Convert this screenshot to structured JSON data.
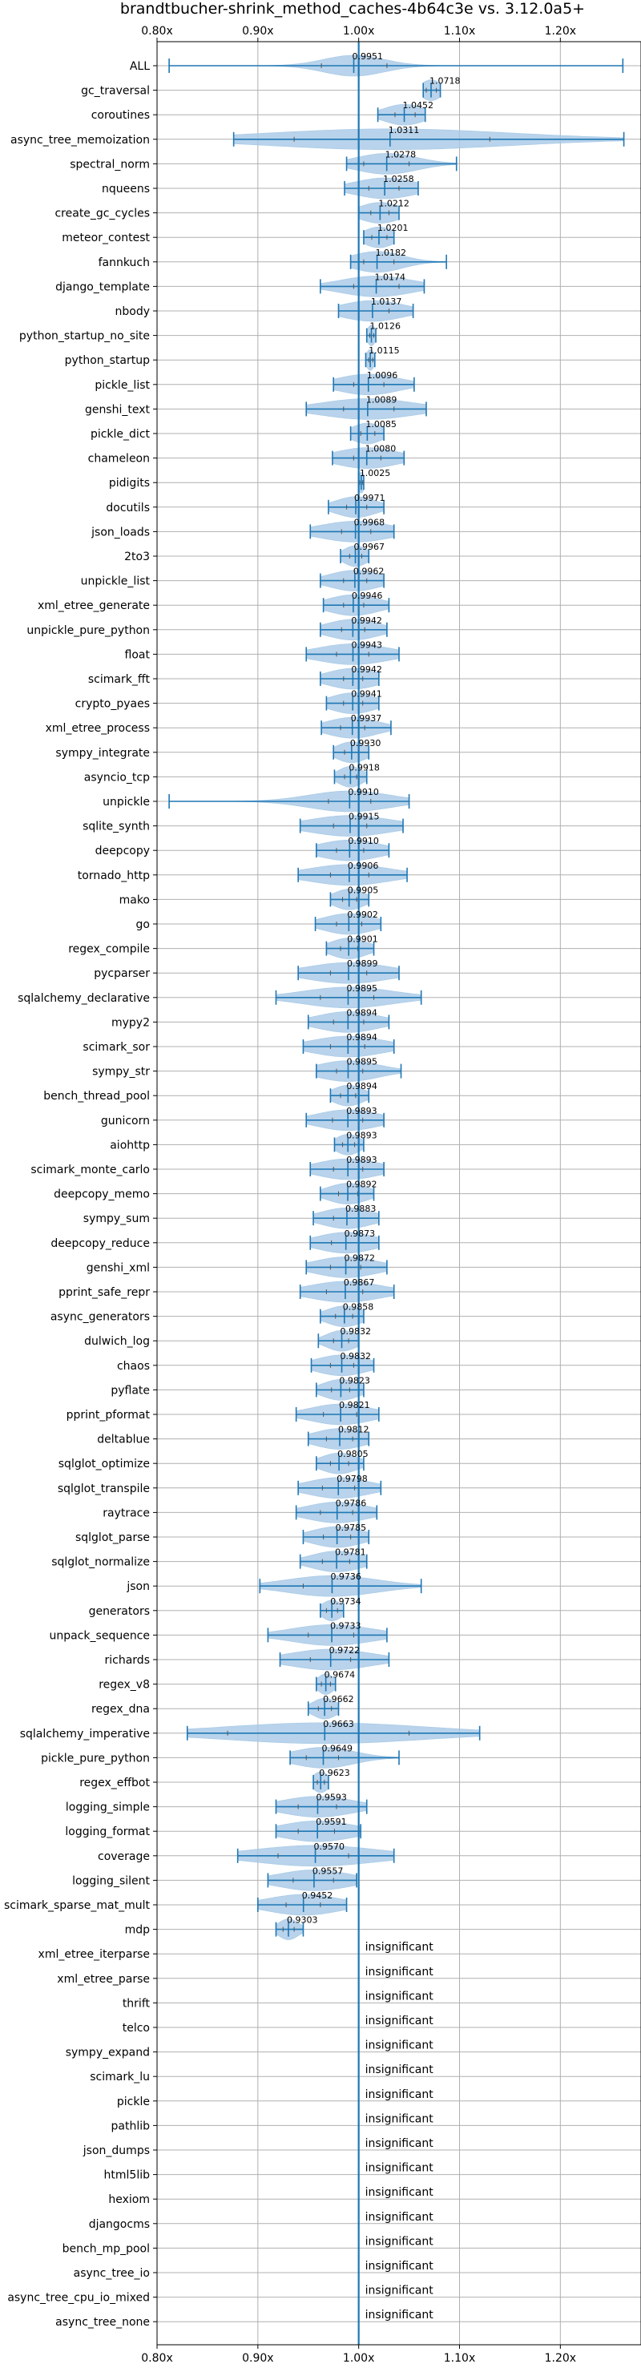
{
  "chart_data": {
    "type": "violin",
    "title": "brandtbucher-shrink_method_caches-4b64c3e vs. 3.12.0a5+",
    "xlim": [
      0.8,
      1.28
    ],
    "xticks": [
      "0.80x",
      "0.90x",
      "1.00x",
      "1.10x",
      "1.20x"
    ],
    "xtick_values": [
      0.8,
      0.9,
      1.0,
      1.1,
      1.2
    ],
    "reference_line": 1.0,
    "grid": true,
    "insignificant_label": "insignificant",
    "colors": {
      "violin": "#a6c8e6",
      "line": "#1f77b4",
      "grid": "#b0b0b0"
    },
    "benchmarks": [
      {
        "name": "ALL",
        "label": "0.9951",
        "mean": 0.9951,
        "min": 0.812,
        "max": 1.262,
        "q1": 0.963,
        "q3": 1.028,
        "spread": 0.03
      },
      {
        "name": "gc_traversal",
        "label": "1.0718",
        "mean": 1.0718,
        "min": 1.064,
        "max": 1.081,
        "q1": 1.067,
        "q3": 1.077,
        "spread": 0.01
      },
      {
        "name": "coroutines",
        "label": "1.0452",
        "mean": 1.0452,
        "min": 1.019,
        "max": 1.066,
        "q1": 1.036,
        "q3": 1.056,
        "spread": 0.02
      },
      {
        "name": "async_tree_memoization",
        "label": "1.0311",
        "mean": 1.0311,
        "min": 0.876,
        "max": 1.263,
        "q1": 0.936,
        "q3": 1.13,
        "spread": 0.12
      },
      {
        "name": "spectral_norm",
        "label": "1.0278",
        "mean": 1.0278,
        "min": 0.988,
        "max": 1.097,
        "q1": 1.005,
        "q3": 1.05,
        "spread": 0.03
      },
      {
        "name": "nqueens",
        "label": "1.0258",
        "mean": 1.0258,
        "min": 0.986,
        "max": 1.059,
        "q1": 1.01,
        "q3": 1.04,
        "spread": 0.03
      },
      {
        "name": "create_gc_cycles",
        "label": "1.0212",
        "mean": 1.0212,
        "min": 1.0,
        "max": 1.04,
        "q1": 1.012,
        "q3": 1.03,
        "spread": 0.02
      },
      {
        "name": "meteor_contest",
        "label": "1.0201",
        "mean": 1.0201,
        "min": 1.005,
        "max": 1.035,
        "q1": 1.013,
        "q3": 1.028,
        "spread": 0.015
      },
      {
        "name": "fannkuch",
        "label": "1.0182",
        "mean": 1.0182,
        "min": 0.992,
        "max": 1.087,
        "q1": 1.005,
        "q3": 1.035,
        "spread": 0.025
      },
      {
        "name": "django_template",
        "label": "1.0174",
        "mean": 1.0174,
        "min": 0.962,
        "max": 1.065,
        "q1": 0.995,
        "q3": 1.04,
        "spread": 0.035
      },
      {
        "name": "nbody",
        "label": "1.0137",
        "mean": 1.0137,
        "min": 0.98,
        "max": 1.054,
        "q1": 1.0,
        "q3": 1.03,
        "spread": 0.03
      },
      {
        "name": "python_startup_no_site",
        "label": "1.0126",
        "mean": 1.0126,
        "min": 1.008,
        "max": 1.017,
        "q1": 1.011,
        "q3": 1.015,
        "spread": 0.004
      },
      {
        "name": "python_startup",
        "label": "1.0115",
        "mean": 1.0115,
        "min": 1.007,
        "max": 1.016,
        "q1": 1.01,
        "q3": 1.014,
        "spread": 0.004
      },
      {
        "name": "pickle_list",
        "label": "1.0096",
        "mean": 1.0096,
        "min": 0.975,
        "max": 1.055,
        "q1": 0.995,
        "q3": 1.025,
        "spread": 0.03
      },
      {
        "name": "genshi_text",
        "label": "1.0089",
        "mean": 1.0089,
        "min": 0.948,
        "max": 1.067,
        "q1": 0.985,
        "q3": 1.035,
        "spread": 0.045
      },
      {
        "name": "pickle_dict",
        "label": "1.0085",
        "mean": 1.0085,
        "min": 0.992,
        "max": 1.025,
        "q1": 1.002,
        "q3": 1.016,
        "spread": 0.015
      },
      {
        "name": "chameleon",
        "label": "1.0080",
        "mean": 1.008,
        "min": 0.974,
        "max": 1.045,
        "q1": 0.995,
        "q3": 1.022,
        "spread": 0.03
      },
      {
        "name": "pidigits",
        "label": "1.0025",
        "mean": 1.0025,
        "min": 1.0,
        "max": 1.005,
        "q1": 1.001,
        "q3": 1.004,
        "spread": 0.003
      },
      {
        "name": "docutils",
        "label": "0.9971",
        "mean": 0.9971,
        "min": 0.97,
        "max": 1.025,
        "q1": 0.988,
        "q3": 1.008,
        "spread": 0.02
      },
      {
        "name": "json_loads",
        "label": "0.9968",
        "mean": 0.9968,
        "min": 0.952,
        "max": 1.035,
        "q1": 0.983,
        "q3": 1.012,
        "spread": 0.035
      },
      {
        "name": "2to3",
        "label": "0.9967",
        "mean": 0.9967,
        "min": 0.982,
        "max": 1.01,
        "q1": 0.991,
        "q3": 1.003,
        "spread": 0.012
      },
      {
        "name": "unpickle_list",
        "label": "0.9962",
        "mean": 0.9962,
        "min": 0.962,
        "max": 1.025,
        "q1": 0.985,
        "q3": 1.008,
        "spread": 0.025
      },
      {
        "name": "xml_etree_generate",
        "label": "0.9946",
        "mean": 0.9946,
        "min": 0.965,
        "max": 1.03,
        "q1": 0.985,
        "q3": 1.005,
        "spread": 0.025
      },
      {
        "name": "unpickle_pure_python",
        "label": "0.9942",
        "mean": 0.9942,
        "min": 0.962,
        "max": 1.028,
        "q1": 0.983,
        "q3": 1.006,
        "spread": 0.025
      },
      {
        "name": "float",
        "label": "0.9943",
        "mean": 0.9943,
        "min": 0.948,
        "max": 1.04,
        "q1": 0.978,
        "q3": 1.01,
        "spread": 0.035
      },
      {
        "name": "scimark_fft",
        "label": "0.9942",
        "mean": 0.9942,
        "min": 0.962,
        "max": 1.02,
        "q1": 0.985,
        "q3": 1.004,
        "spread": 0.025
      },
      {
        "name": "crypto_pyaes",
        "label": "0.9941",
        "mean": 0.9941,
        "min": 0.968,
        "max": 1.02,
        "q1": 0.985,
        "q3": 1.004,
        "spread": 0.022
      },
      {
        "name": "xml_etree_process",
        "label": "0.9937",
        "mean": 0.9937,
        "min": 0.963,
        "max": 1.032,
        "q1": 0.982,
        "q3": 1.006,
        "spread": 0.025
      },
      {
        "name": "sympy_integrate",
        "label": "0.9930",
        "mean": 0.993,
        "min": 0.975,
        "max": 1.01,
        "q1": 0.986,
        "q3": 1.0,
        "spread": 0.015
      },
      {
        "name": "asyncio_tcp",
        "label": "0.9918",
        "mean": 0.9918,
        "min": 0.976,
        "max": 1.008,
        "q1": 0.986,
        "q3": 0.998,
        "spread": 0.012
      },
      {
        "name": "unpickle",
        "label": "0.9910",
        "mean": 0.991,
        "min": 0.812,
        "max": 1.05,
        "q1": 0.97,
        "q3": 1.012,
        "spread": 0.04
      },
      {
        "name": "sqlite_synth",
        "label": "0.9915",
        "mean": 0.9915,
        "min": 0.942,
        "max": 1.044,
        "q1": 0.975,
        "q3": 1.008,
        "spread": 0.04
      },
      {
        "name": "deepcopy",
        "label": "0.9910",
        "mean": 0.991,
        "min": 0.958,
        "max": 1.03,
        "q1": 0.978,
        "q3": 1.005,
        "spread": 0.03
      },
      {
        "name": "tornado_http",
        "label": "0.9906",
        "mean": 0.9906,
        "min": 0.94,
        "max": 1.048,
        "q1": 0.972,
        "q3": 1.01,
        "spread": 0.04
      },
      {
        "name": "mako",
        "label": "0.9905",
        "mean": 0.9905,
        "min": 0.972,
        "max": 1.01,
        "q1": 0.984,
        "q3": 0.998,
        "spread": 0.015
      },
      {
        "name": "go",
        "label": "0.9902",
        "mean": 0.9902,
        "min": 0.957,
        "max": 1.022,
        "q1": 0.978,
        "q3": 1.003,
        "spread": 0.025
      },
      {
        "name": "regex_compile",
        "label": "0.9901",
        "mean": 0.9901,
        "min": 0.968,
        "max": 1.015,
        "q1": 0.982,
        "q3": 0.999,
        "spread": 0.018
      },
      {
        "name": "pycparser",
        "label": "0.9899",
        "mean": 0.9899,
        "min": 0.94,
        "max": 1.04,
        "q1": 0.972,
        "q3": 1.008,
        "spread": 0.04
      },
      {
        "name": "sqlalchemy_declarative",
        "label": "0.9895",
        "mean": 0.9895,
        "min": 0.918,
        "max": 1.062,
        "q1": 0.962,
        "q3": 1.015,
        "spread": 0.045
      },
      {
        "name": "mypy2",
        "label": "0.9894",
        "mean": 0.9894,
        "min": 0.95,
        "max": 1.03,
        "q1": 0.975,
        "q3": 1.005,
        "spread": 0.03
      },
      {
        "name": "scimark_sor",
        "label": "0.9894",
        "mean": 0.9894,
        "min": 0.945,
        "max": 1.035,
        "q1": 0.972,
        "q3": 1.006,
        "spread": 0.035
      },
      {
        "name": "sympy_str",
        "label": "0.9895",
        "mean": 0.9895,
        "min": 0.958,
        "max": 1.042,
        "q1": 0.978,
        "q3": 1.004,
        "spread": 0.03
      },
      {
        "name": "bench_thread_pool",
        "label": "0.9894",
        "mean": 0.9894,
        "min": 0.972,
        "max": 1.01,
        "q1": 0.982,
        "q3": 0.997,
        "spread": 0.015
      },
      {
        "name": "gunicorn",
        "label": "0.9893",
        "mean": 0.9893,
        "min": 0.948,
        "max": 1.025,
        "q1": 0.974,
        "q3": 1.004,
        "spread": 0.03
      },
      {
        "name": "aiohttp",
        "label": "0.9893",
        "mean": 0.9893,
        "min": 0.976,
        "max": 1.005,
        "q1": 0.984,
        "q3": 0.996,
        "spread": 0.012
      },
      {
        "name": "scimark_monte_carlo",
        "label": "0.9893",
        "mean": 0.9893,
        "min": 0.952,
        "max": 1.025,
        "q1": 0.975,
        "q3": 1.004,
        "spread": 0.03
      },
      {
        "name": "deepcopy_memo",
        "label": "0.9892",
        "mean": 0.9892,
        "min": 0.962,
        "max": 1.015,
        "q1": 0.98,
        "q3": 0.999,
        "spread": 0.02
      },
      {
        "name": "sympy_sum",
        "label": "0.9883",
        "mean": 0.9883,
        "min": 0.955,
        "max": 1.02,
        "q1": 0.975,
        "q3": 1.0,
        "spread": 0.025
      },
      {
        "name": "deepcopy_reduce",
        "label": "0.9873",
        "mean": 0.9873,
        "min": 0.952,
        "max": 1.02,
        "q1": 0.973,
        "q3": 1.0,
        "spread": 0.028
      },
      {
        "name": "genshi_xml",
        "label": "0.9872",
        "mean": 0.9872,
        "min": 0.948,
        "max": 1.028,
        "q1": 0.972,
        "q3": 1.002,
        "spread": 0.03
      },
      {
        "name": "pprint_safe_repr",
        "label": "0.9867",
        "mean": 0.9867,
        "min": 0.942,
        "max": 1.035,
        "q1": 0.968,
        "q3": 1.004,
        "spread": 0.035
      },
      {
        "name": "async_generators",
        "label": "0.9858",
        "mean": 0.9858,
        "min": 0.962,
        "max": 1.005,
        "q1": 0.977,
        "q3": 0.994,
        "spread": 0.018
      },
      {
        "name": "dulwich_log",
        "label": "0.9832",
        "mean": 0.9832,
        "min": 0.96,
        "max": 1.0,
        "q1": 0.975,
        "q3": 0.99,
        "spread": 0.015
      },
      {
        "name": "chaos",
        "label": "0.9832",
        "mean": 0.9832,
        "min": 0.953,
        "max": 1.015,
        "q1": 0.972,
        "q3": 0.995,
        "spread": 0.025
      },
      {
        "name": "pyflate",
        "label": "0.9823",
        "mean": 0.9823,
        "min": 0.958,
        "max": 1.005,
        "q1": 0.973,
        "q3": 0.991,
        "spread": 0.018
      },
      {
        "name": "pprint_pformat",
        "label": "0.9821",
        "mean": 0.9821,
        "min": 0.938,
        "max": 1.02,
        "q1": 0.965,
        "q3": 0.998,
        "spread": 0.03
      },
      {
        "name": "deltablue",
        "label": "0.9812",
        "mean": 0.9812,
        "min": 0.95,
        "max": 1.01,
        "q1": 0.968,
        "q3": 0.994,
        "spread": 0.025
      },
      {
        "name": "sqlglot_optimize",
        "label": "0.9805",
        "mean": 0.9805,
        "min": 0.958,
        "max": 1.005,
        "q1": 0.972,
        "q3": 0.99,
        "spread": 0.018
      },
      {
        "name": "sqlglot_transpile",
        "label": "0.9798",
        "mean": 0.9798,
        "min": 0.94,
        "max": 1.022,
        "q1": 0.964,
        "q3": 0.996,
        "spread": 0.03
      },
      {
        "name": "raytrace",
        "label": "0.9786",
        "mean": 0.9786,
        "min": 0.938,
        "max": 1.018,
        "q1": 0.962,
        "q3": 0.994,
        "spread": 0.03
      },
      {
        "name": "sqlglot_parse",
        "label": "0.9785",
        "mean": 0.9785,
        "min": 0.945,
        "max": 1.01,
        "q1": 0.965,
        "q3": 0.992,
        "spread": 0.025
      },
      {
        "name": "sqlglot_normalize",
        "label": "0.9781",
        "mean": 0.9781,
        "min": 0.942,
        "max": 1.008,
        "q1": 0.964,
        "q3": 0.991,
        "spread": 0.025
      },
      {
        "name": "json",
        "label": "0.9736",
        "mean": 0.9736,
        "min": 0.902,
        "max": 1.062,
        "q1": 0.945,
        "q3": 1.0,
        "spread": 0.045
      },
      {
        "name": "generators",
        "label": "0.9734",
        "mean": 0.9734,
        "min": 0.962,
        "max": 0.985,
        "q1": 0.968,
        "q3": 0.979,
        "spread": 0.01
      },
      {
        "name": "unpack_sequence",
        "label": "0.9733",
        "mean": 0.9733,
        "min": 0.91,
        "max": 1.028,
        "q1": 0.95,
        "q3": 0.995,
        "spread": 0.04
      },
      {
        "name": "richards",
        "label": "0.9722",
        "mean": 0.9722,
        "min": 0.922,
        "max": 1.03,
        "q1": 0.952,
        "q3": 0.992,
        "spread": 0.04
      },
      {
        "name": "regex_v8",
        "label": "0.9674",
        "mean": 0.9674,
        "min": 0.958,
        "max": 0.977,
        "q1": 0.963,
        "q3": 0.972,
        "spread": 0.008
      },
      {
        "name": "regex_dna",
        "label": "0.9662",
        "mean": 0.9662,
        "min": 0.95,
        "max": 0.98,
        "q1": 0.96,
        "q3": 0.973,
        "spread": 0.012
      },
      {
        "name": "sqlalchemy_imperative",
        "label": "0.9663",
        "mean": 0.9663,
        "min": 0.83,
        "max": 1.12,
        "q1": 0.87,
        "q3": 1.05,
        "spread": 0.1
      },
      {
        "name": "pickle_pure_python",
        "label": "0.9649",
        "mean": 0.9649,
        "min": 0.932,
        "max": 1.04,
        "q1": 0.948,
        "q3": 0.98,
        "spread": 0.03
      },
      {
        "name": "regex_effbot",
        "label": "0.9623",
        "mean": 0.9623,
        "min": 0.955,
        "max": 0.97,
        "q1": 0.959,
        "q3": 0.966,
        "spread": 0.008
      },
      {
        "name": "logging_simple",
        "label": "0.9593",
        "mean": 0.9593,
        "min": 0.918,
        "max": 1.008,
        "q1": 0.94,
        "q3": 0.978,
        "spread": 0.035
      },
      {
        "name": "logging_format",
        "label": "0.9591",
        "mean": 0.9591,
        "min": 0.918,
        "max": 1.002,
        "q1": 0.94,
        "q3": 0.976,
        "spread": 0.035
      },
      {
        "name": "coverage",
        "label": "0.9570",
        "mean": 0.957,
        "min": 0.88,
        "max": 1.035,
        "q1": 0.92,
        "q3": 0.99,
        "spread": 0.06
      },
      {
        "name": "logging_silent",
        "label": "0.9557",
        "mean": 0.9557,
        "min": 0.91,
        "max": 0.998,
        "q1": 0.935,
        "q3": 0.975,
        "spread": 0.035
      },
      {
        "name": "scimark_sparse_mat_mult",
        "label": "0.9452",
        "mean": 0.9452,
        "min": 0.9,
        "max": 0.988,
        "q1": 0.928,
        "q3": 0.962,
        "spread": 0.035
      },
      {
        "name": "mdp",
        "label": "0.9303",
        "mean": 0.9303,
        "min": 0.918,
        "max": 0.945,
        "q1": 0.925,
        "q3": 0.936,
        "spread": 0.01
      },
      {
        "name": "xml_etree_iterparse",
        "insignificant": true
      },
      {
        "name": "xml_etree_parse",
        "insignificant": true
      },
      {
        "name": "thrift",
        "insignificant": true
      },
      {
        "name": "telco",
        "insignificant": true
      },
      {
        "name": "sympy_expand",
        "insignificant": true
      },
      {
        "name": "scimark_lu",
        "insignificant": true
      },
      {
        "name": "pickle",
        "insignificant": true
      },
      {
        "name": "pathlib",
        "insignificant": true
      },
      {
        "name": "json_dumps",
        "insignificant": true
      },
      {
        "name": "html5lib",
        "insignificant": true
      },
      {
        "name": "hexiom",
        "insignificant": true
      },
      {
        "name": "djangocms",
        "insignificant": true
      },
      {
        "name": "bench_mp_pool",
        "insignificant": true
      },
      {
        "name": "async_tree_io",
        "insignificant": true
      },
      {
        "name": "async_tree_cpu_io_mixed",
        "insignificant": true
      },
      {
        "name": "async_tree_none",
        "insignificant": true
      }
    ]
  }
}
